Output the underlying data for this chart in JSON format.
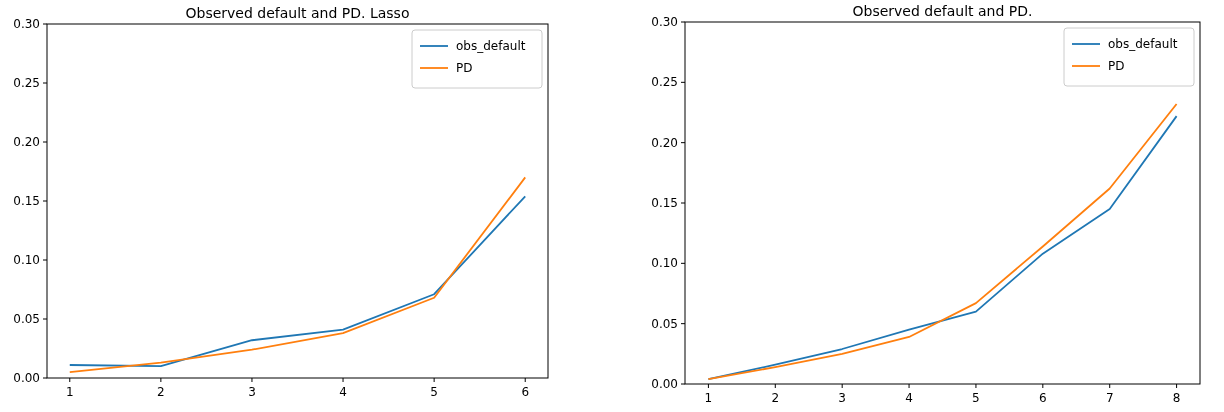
{
  "chart_data": [
    {
      "type": "line",
      "title": "Observed default and PD. Lasso",
      "x": [
        1,
        2,
        3,
        4,
        5,
        6
      ],
      "xlim": [
        0.75,
        6.25
      ],
      "xticks": [
        1,
        2,
        3,
        4,
        5,
        6
      ],
      "ylim": [
        0,
        0.3
      ],
      "yticks": [
        {
          "value": 0,
          "label": "0.00"
        },
        {
          "value": 0.05,
          "label": "0.05"
        },
        {
          "value": 0.1,
          "label": "0.10"
        },
        {
          "value": 0.15,
          "label": "0.15"
        },
        {
          "value": 0.2,
          "label": "0.20"
        },
        {
          "value": 0.25,
          "label": "0.25"
        },
        {
          "value": 0.3,
          "label": "0.30"
        }
      ],
      "legend": "top right",
      "grid": false,
      "series": [
        {
          "name": "obs_default",
          "color": "#1f77b4",
          "values": [
            0.011,
            0.01,
            0.032,
            0.041,
            0.071,
            0.154
          ]
        },
        {
          "name": "PD",
          "color": "#ff7f0e",
          "values": [
            0.005,
            0.013,
            0.024,
            0.038,
            0.068,
            0.17
          ]
        }
      ]
    },
    {
      "type": "line",
      "title": "Observed default and PD.",
      "x": [
        1,
        2,
        3,
        4,
        5,
        6,
        7,
        8
      ],
      "xlim": [
        0.65,
        8.35
      ],
      "xticks": [
        1,
        2,
        3,
        4,
        5,
        6,
        7,
        8
      ],
      "ylim": [
        0,
        0.3
      ],
      "yticks": [
        {
          "value": 0,
          "label": "0.00"
        },
        {
          "value": 0.05,
          "label": "0.05"
        },
        {
          "value": 0.1,
          "label": "0.10"
        },
        {
          "value": 0.15,
          "label": "0.15"
        },
        {
          "value": 0.2,
          "label": "0.20"
        },
        {
          "value": 0.25,
          "label": "0.25"
        },
        {
          "value": 0.3,
          "label": "0.30"
        }
      ],
      "legend": "top right",
      "grid": false,
      "series": [
        {
          "name": "obs_default",
          "color": "#1f77b4",
          "values": [
            0.004,
            0.016,
            0.029,
            0.045,
            0.06,
            0.108,
            0.145,
            0.222
          ]
        },
        {
          "name": "PD",
          "color": "#ff7f0e",
          "values": [
            0.004,
            0.014,
            0.025,
            0.039,
            0.067,
            0.114,
            0.162,
            0.232
          ]
        }
      ]
    }
  ]
}
